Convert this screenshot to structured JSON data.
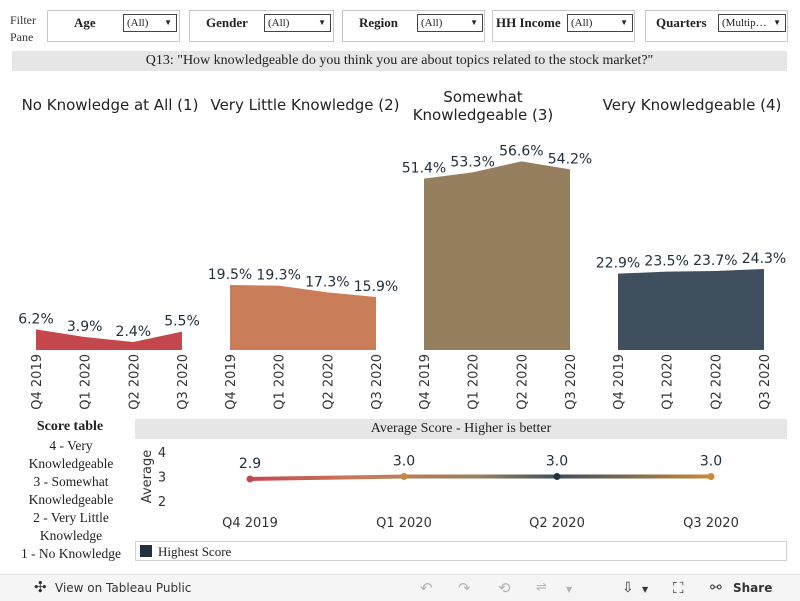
{
  "filter_pane": {
    "label_line1": "Filter",
    "label_line2": "Pane"
  },
  "filters": [
    {
      "label": "Age",
      "value": "(All)"
    },
    {
      "label": "Gender",
      "value": "(All)"
    },
    {
      "label": "Region",
      "value": "(All)"
    },
    {
      "label": "HH Income",
      "value": "(All)"
    },
    {
      "label": "Quarters",
      "value": "(Multip…"
    }
  ],
  "question": "Q13: \"How knowledgeable do you think you are about topics related to the stock market?\"",
  "categories": [
    {
      "title_lines": [
        "No Knowledge at All (1)"
      ],
      "color": "#c5474e"
    },
    {
      "title_lines": [
        "Very Little Knowledge (2)"
      ],
      "color": "#c97d58"
    },
    {
      "title_lines": [
        "Somewhat",
        "Knowledgeable (3)"
      ],
      "color": "#967f5e"
    },
    {
      "title_lines": [
        "Very Knowledgeable (4)"
      ],
      "color": "#404f5e"
    }
  ],
  "chart_data": [
    {
      "type": "area",
      "title": "",
      "x": [
        "Q4 2019",
        "Q1 2020",
        "Q2 2020",
        "Q3 2020"
      ],
      "series": [
        {
          "name": "No Knowledge at All (1)",
          "values": [
            6.2,
            3.9,
            2.4,
            5.5
          ],
          "labels": [
            "6.2%",
            "3.9%",
            "2.4%",
            "5.5%"
          ]
        },
        {
          "name": "Very Little Knowledge (2)",
          "values": [
            19.5,
            19.3,
            17.3,
            15.9
          ],
          "labels": [
            "19.5%",
            "19.3%",
            "17.3%",
            "15.9%"
          ]
        },
        {
          "name": "Somewhat Knowledgeable (3)",
          "values": [
            51.4,
            53.3,
            56.6,
            54.2
          ],
          "labels": [
            "51.4%",
            "53.3%",
            "56.6%",
            "54.2%"
          ]
        },
        {
          "name": "Very Knowledgeable (4)",
          "values": [
            22.9,
            23.5,
            23.7,
            24.3
          ],
          "labels": [
            "22.9%",
            "23.5%",
            "23.7%",
            "24.3%"
          ]
        }
      ],
      "ylim": [
        0,
        60
      ]
    },
    {
      "type": "line",
      "title": "Average Score - Higher is better",
      "x": [
        "Q4 2019",
        "Q1 2020",
        "Q2 2020",
        "Q3 2020"
      ],
      "values": [
        2.9,
        3.0,
        3.0,
        3.0
      ],
      "labels": [
        "2.9",
        "3.0",
        "3.0",
        "3.0"
      ],
      "ylabel": "Average",
      "yticks": [
        "4",
        "3",
        "2"
      ],
      "ylim": [
        2,
        4
      ]
    }
  ],
  "score_table": {
    "title": "Score table",
    "lines": [
      "4 - Very",
      "Knowledgeable",
      "3 - Somewhat",
      "Knowledgeable",
      "2 - Very Little",
      "Knowledge",
      "1 - No Knowledge"
    ]
  },
  "legend": {
    "label": "Highest Score",
    "color": "#22313f"
  },
  "toolbar": {
    "view_label": "View on Tableau Public",
    "share_label": "Share"
  }
}
